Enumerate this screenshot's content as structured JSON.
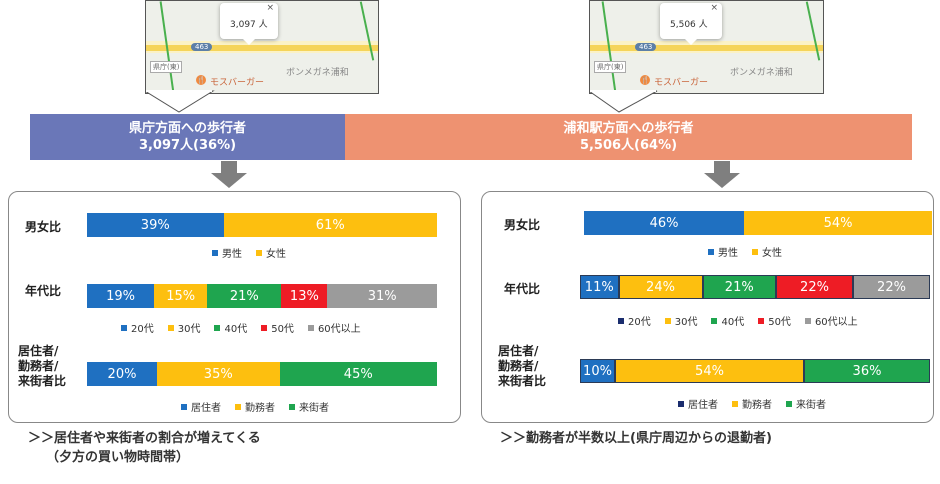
{
  "maps": [
    {
      "count_label": "3,097 人",
      "close": "×",
      "road_num": "463",
      "poi_main": "モスバーガー",
      "poi_glasses": "ボンメガネ浦和",
      "sign": "県庁(東)"
    },
    {
      "count_label": "5,506 人",
      "close": "×",
      "road_num": "463",
      "poi_main": "モスバーガー",
      "poi_glasses": "ボンメガネ浦和",
      "sign": "県庁(東)"
    }
  ],
  "banners": {
    "left": {
      "line1": "県庁方面への歩行者",
      "line2": "3,097人(36%)",
      "color": "#6a77b8"
    },
    "right": {
      "line1": "浦和駅方面への歩行者",
      "line2": "5,506人(64%)",
      "color": "#ee9271"
    }
  },
  "colors": {
    "blue": "#1f70c1",
    "yellow": "#fdbf0f",
    "green": "#1fa54f",
    "red": "#ee1c25",
    "gray": "#9b9b9b",
    "navy": "#1a2d6e"
  },
  "chart_data": [
    {
      "type": "bar",
      "stacked": "horizontal-100%",
      "rows": [
        {
          "label": "男女比",
          "series": [
            {
              "name": "男性",
              "value": 39
            },
            {
              "name": "女性",
              "value": 61
            }
          ]
        },
        {
          "label": "年代比",
          "series": [
            {
              "name": "20代",
              "value": 19
            },
            {
              "name": "30代",
              "value": 15
            },
            {
              "name": "40代",
              "value": 21
            },
            {
              "name": "50代",
              "value": 13
            },
            {
              "name": "60代以上",
              "value": 31
            }
          ]
        },
        {
          "label": "居住者/勤務者/来街者比",
          "series": [
            {
              "name": "居住者",
              "value": 20
            },
            {
              "name": "勤務者",
              "value": 35
            },
            {
              "name": "来街者",
              "value": 45
            }
          ]
        }
      ]
    },
    {
      "type": "bar",
      "stacked": "horizontal-100%",
      "rows": [
        {
          "label": "男女比",
          "series": [
            {
              "name": "男性",
              "value": 46
            },
            {
              "name": "女性",
              "value": 54
            }
          ]
        },
        {
          "label": "年代比",
          "series": [
            {
              "name": "20代",
              "value": 11
            },
            {
              "name": "30代",
              "value": 24
            },
            {
              "name": "40代",
              "value": 21
            },
            {
              "name": "50代",
              "value": 22
            },
            {
              "name": "60代以上",
              "value": 22
            }
          ]
        },
        {
          "label": "居住者/勤務者/来街者比",
          "series": [
            {
              "name": "居住者",
              "value": 10
            },
            {
              "name": "勤務者",
              "value": 54
            },
            {
              "name": "来街者",
              "value": 36
            }
          ]
        }
      ]
    }
  ],
  "left_panel": {
    "gender": {
      "label": "男女比",
      "values": [
        "39%",
        "61%"
      ],
      "legend": [
        "男性",
        "女性"
      ]
    },
    "age": {
      "label": "年代比",
      "values": [
        "19%",
        "15%",
        "21%",
        "13%",
        "31%"
      ],
      "legend": [
        "20代",
        "30代",
        "40代",
        "50代",
        "60代以上"
      ]
    },
    "resident": {
      "label_lines": [
        "居住者/",
        "勤務者/",
        "来街者比"
      ],
      "values": [
        "20%",
        "35%",
        "45%"
      ],
      "legend": [
        "居住者",
        "勤務者",
        "来街者"
      ]
    }
  },
  "right_panel": {
    "gender": {
      "label": "男女比",
      "values": [
        "46%",
        "54%"
      ],
      "legend": [
        "男性",
        "女性"
      ]
    },
    "age": {
      "label": "年代比",
      "values": [
        "11%",
        "24%",
        "21%",
        "22%",
        "22%"
      ],
      "legend": [
        "20代",
        "30代",
        "40代",
        "50代",
        "60代以上"
      ]
    },
    "resident": {
      "label_lines": [
        "居住者/",
        "勤務者/",
        "来街者比"
      ],
      "values": [
        "10%",
        "54%",
        "36%"
      ],
      "legend": [
        "居住者",
        "勤務者",
        "来街者"
      ]
    }
  },
  "conclusions": {
    "left_line1": "＞＞居住者や来街者の割合が増えてくる",
    "left_line2": "（夕方の買い物時間帯）",
    "right_line1": "＞＞勤務者が半数以上(県庁周辺からの退勤者)"
  }
}
